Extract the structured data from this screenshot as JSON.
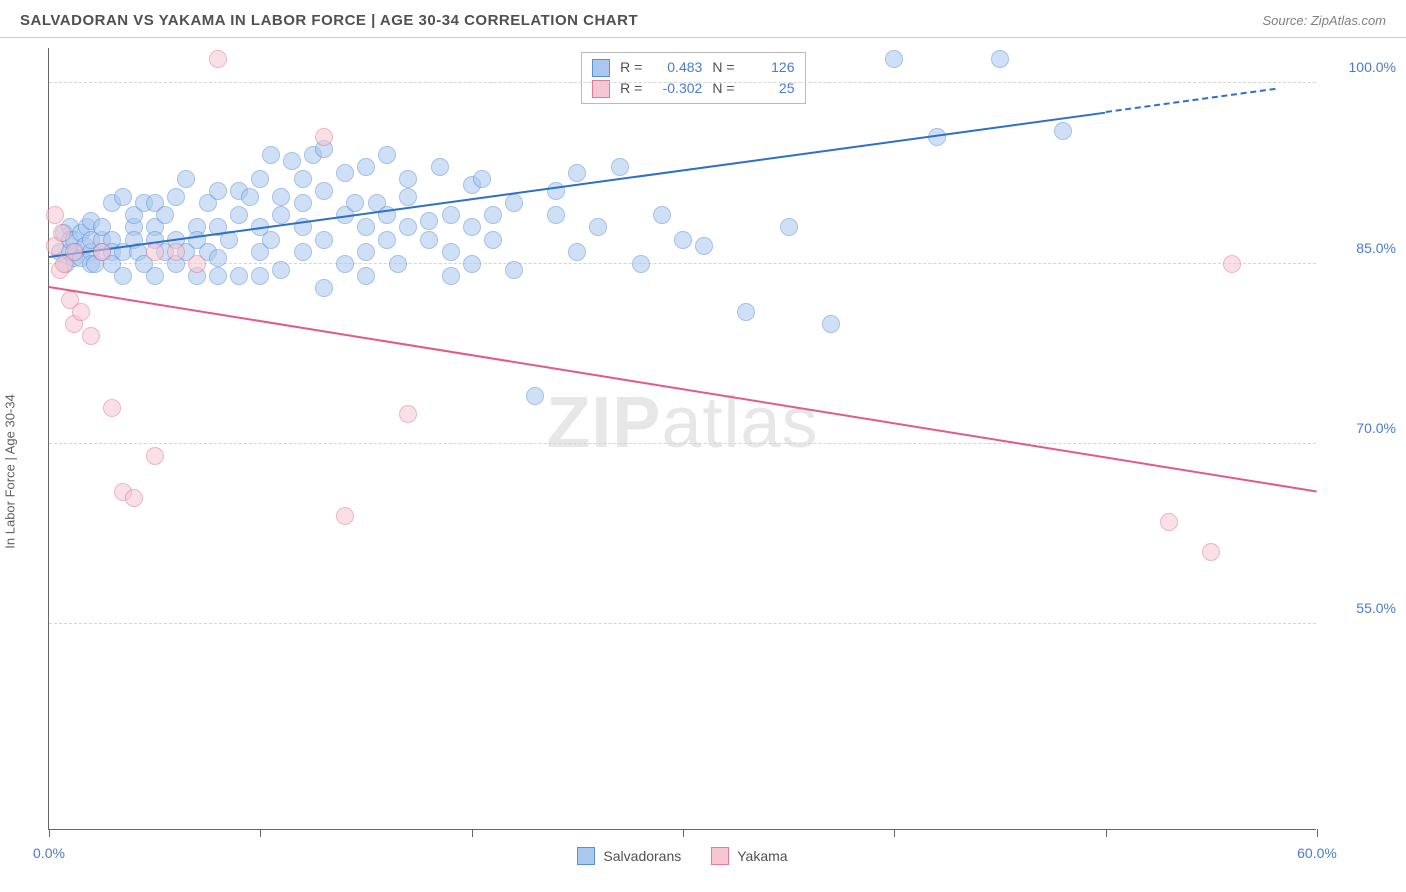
{
  "header": {
    "title": "SALVADORAN VS YAKAMA IN LABOR FORCE | AGE 30-34 CORRELATION CHART",
    "source": "Source: ZipAtlas.com"
  },
  "chart": {
    "type": "scatter",
    "ylabel": "In Labor Force | Age 30-34",
    "watermark_a": "ZIP",
    "watermark_b": "atlas",
    "xlim": [
      0,
      60
    ],
    "ylim": [
      38,
      103
    ],
    "xtick_positions": [
      0,
      10,
      20,
      30,
      40,
      50,
      60
    ],
    "xtick_labels": {
      "0": "0.0%",
      "60": "60.0%"
    },
    "ytick_positions": [
      55,
      70,
      85,
      100
    ],
    "ytick_labels": [
      "55.0%",
      "70.0%",
      "85.0%",
      "100.0%"
    ],
    "grid_color": "#d5d5d5",
    "axis_color": "#666666",
    "background_color": "#ffffff",
    "label_color": "#4a7bd0",
    "marker_radius": 9,
    "marker_opacity": 0.55,
    "series": [
      {
        "name": "Salvadorans",
        "color_fill": "#a9c8ef",
        "color_stroke": "#5b8fd6",
        "line_color": "#2e6fc9",
        "r": "0.483",
        "n": "126",
        "trend": {
          "x1": 0,
          "y1": 85.5,
          "x2": 50,
          "y2": 97.5,
          "dash_to_x": 58
        },
        "points": [
          [
            0.5,
            86
          ],
          [
            0.7,
            87.5
          ],
          [
            0.8,
            85
          ],
          [
            1,
            88
          ],
          [
            1,
            86
          ],
          [
            1,
            87
          ],
          [
            1.2,
            85.5
          ],
          [
            1.2,
            87
          ],
          [
            1.3,
            86
          ],
          [
            1.5,
            85.5
          ],
          [
            1.5,
            87.5
          ],
          [
            1.7,
            86.5
          ],
          [
            1.8,
            88
          ],
          [
            2,
            86
          ],
          [
            2,
            85
          ],
          [
            2,
            88.5
          ],
          [
            2,
            87
          ],
          [
            2.2,
            85
          ],
          [
            2.5,
            87
          ],
          [
            2.5,
            88
          ],
          [
            2.5,
            86
          ],
          [
            3,
            90
          ],
          [
            3,
            87
          ],
          [
            3,
            86
          ],
          [
            3,
            85
          ],
          [
            3.5,
            90.5
          ],
          [
            3.5,
            86
          ],
          [
            3.5,
            84
          ],
          [
            4,
            88
          ],
          [
            4,
            89
          ],
          [
            4,
            87
          ],
          [
            4.2,
            86
          ],
          [
            4.5,
            85
          ],
          [
            4.5,
            90
          ],
          [
            5,
            88
          ],
          [
            5,
            87
          ],
          [
            5,
            90
          ],
          [
            5,
            84
          ],
          [
            5.5,
            86
          ],
          [
            5.5,
            89
          ],
          [
            6,
            90.5
          ],
          [
            6,
            87
          ],
          [
            6,
            85
          ],
          [
            6.5,
            92
          ],
          [
            6.5,
            86
          ],
          [
            7,
            88
          ],
          [
            7,
            84
          ],
          [
            7,
            87
          ],
          [
            7.5,
            90
          ],
          [
            7.5,
            86
          ],
          [
            8,
            91
          ],
          [
            8,
            88
          ],
          [
            8,
            84
          ],
          [
            8,
            85.5
          ],
          [
            8.5,
            87
          ],
          [
            9,
            91
          ],
          [
            9,
            89
          ],
          [
            9,
            84
          ],
          [
            9.5,
            90.5
          ],
          [
            10,
            92
          ],
          [
            10,
            88
          ],
          [
            10,
            84
          ],
          [
            10,
            86
          ],
          [
            10.5,
            87
          ],
          [
            10.5,
            94
          ],
          [
            11,
            89
          ],
          [
            11,
            90.5
          ],
          [
            11,
            84.5
          ],
          [
            11.5,
            93.5
          ],
          [
            12,
            86
          ],
          [
            12,
            90
          ],
          [
            12,
            92
          ],
          [
            12,
            88
          ],
          [
            12.5,
            94
          ],
          [
            13,
            87
          ],
          [
            13,
            91
          ],
          [
            13,
            83
          ],
          [
            13,
            94.5
          ],
          [
            14,
            89
          ],
          [
            14,
            85
          ],
          [
            14,
            92.5
          ],
          [
            14.5,
            90
          ],
          [
            15,
            93
          ],
          [
            15,
            88
          ],
          [
            15,
            86
          ],
          [
            15,
            84
          ],
          [
            15.5,
            90
          ],
          [
            16,
            94
          ],
          [
            16,
            87
          ],
          [
            16,
            89
          ],
          [
            16.5,
            85
          ],
          [
            17,
            92
          ],
          [
            17,
            88
          ],
          [
            17,
            90.5
          ],
          [
            18,
            87
          ],
          [
            18,
            88.5
          ],
          [
            18.5,
            93
          ],
          [
            19,
            86
          ],
          [
            19,
            89
          ],
          [
            19,
            84
          ],
          [
            20,
            91.5
          ],
          [
            20,
            88
          ],
          [
            20,
            85
          ],
          [
            20.5,
            92
          ],
          [
            21,
            89
          ],
          [
            21,
            87
          ],
          [
            22,
            90
          ],
          [
            22,
            84.5
          ],
          [
            23,
            74
          ],
          [
            24,
            89
          ],
          [
            24,
            91
          ],
          [
            25,
            92.5
          ],
          [
            25,
            86
          ],
          [
            26,
            88
          ],
          [
            27,
            93
          ],
          [
            28,
            85
          ],
          [
            29,
            89
          ],
          [
            30,
            87
          ],
          [
            31,
            86.5
          ],
          [
            33,
            81
          ],
          [
            35,
            88
          ],
          [
            37,
            80
          ],
          [
            40,
            102
          ],
          [
            42,
            95.5
          ],
          [
            45,
            102
          ],
          [
            48,
            96
          ]
        ]
      },
      {
        "name": "Yakama",
        "color_fill": "#f6c6d3",
        "color_stroke": "#e27a98",
        "line_color": "#e35a82",
        "r": "-0.302",
        "n": "25",
        "trend": {
          "x1": 0,
          "y1": 83,
          "x2": 60,
          "y2": 66
        },
        "points": [
          [
            0.3,
            89
          ],
          [
            0.3,
            86.5
          ],
          [
            0.5,
            84.5
          ],
          [
            0.6,
            87.5
          ],
          [
            0.7,
            85
          ],
          [
            1,
            82
          ],
          [
            1.2,
            80
          ],
          [
            1.2,
            86
          ],
          [
            1.5,
            81
          ],
          [
            2,
            79
          ],
          [
            2.5,
            86
          ],
          [
            3,
            73
          ],
          [
            3.5,
            66
          ],
          [
            4,
            65.5
          ],
          [
            5,
            86
          ],
          [
            5,
            69
          ],
          [
            6,
            86
          ],
          [
            7,
            85
          ],
          [
            8,
            102
          ],
          [
            13,
            95.5
          ],
          [
            14,
            64
          ],
          [
            17,
            72.5
          ],
          [
            53,
            63.5
          ],
          [
            55,
            61
          ],
          [
            56,
            85
          ]
        ]
      }
    ],
    "legend_bottom": [
      {
        "label": "Salvadorans",
        "fill": "#a9c8ef",
        "stroke": "#5b8fd6"
      },
      {
        "label": "Yakama",
        "fill": "#f6c6d3",
        "stroke": "#e27a98"
      }
    ]
  }
}
